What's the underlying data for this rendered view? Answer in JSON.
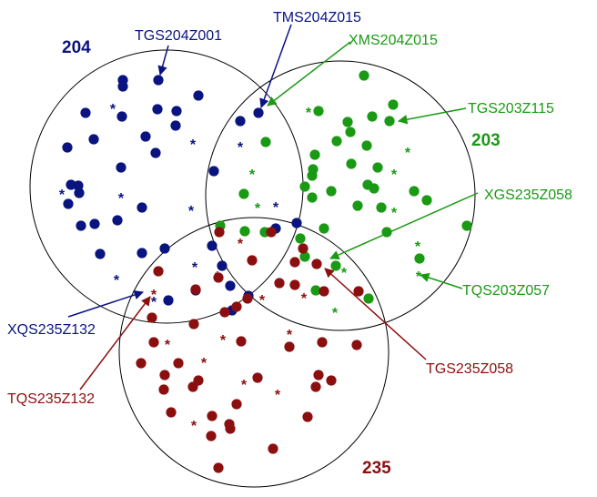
{
  "colors": {
    "set_204": "#0a1480",
    "set_203": "#1a9a14",
    "set_235": "#8c0f0f",
    "circle_stroke": "#000000"
  },
  "sets": [
    {
      "id": "204",
      "label": "204",
      "color_key": "set_204"
    },
    {
      "id": "203",
      "label": "203",
      "color_key": "set_203"
    },
    {
      "id": "235",
      "label": "235",
      "color_key": "set_235"
    }
  ],
  "callouts": [
    {
      "id": "tgs204z001",
      "text": "TGS204Z001",
      "color_key": "set_204"
    },
    {
      "id": "tms204z015",
      "text": "TMS204Z015",
      "color_key": "set_204"
    },
    {
      "id": "xms204z015",
      "text": "XMS204Z015",
      "color_key": "set_203"
    },
    {
      "id": "tgs203z115",
      "text": "TGS203Z115",
      "color_key": "set_203"
    },
    {
      "id": "xgs235z058",
      "text": "XGS235Z058",
      "color_key": "set_203"
    },
    {
      "id": "tqs203z057",
      "text": "TQS203Z057",
      "color_key": "set_203"
    },
    {
      "id": "tgs235z058",
      "text": "TGS235Z058",
      "color_key": "set_235"
    },
    {
      "id": "xqs235z132",
      "text": "XQS235Z132",
      "color_key": "set_204"
    },
    {
      "id": "tqs235z132",
      "text": "TQS235Z132",
      "color_key": "set_235"
    }
  ]
}
